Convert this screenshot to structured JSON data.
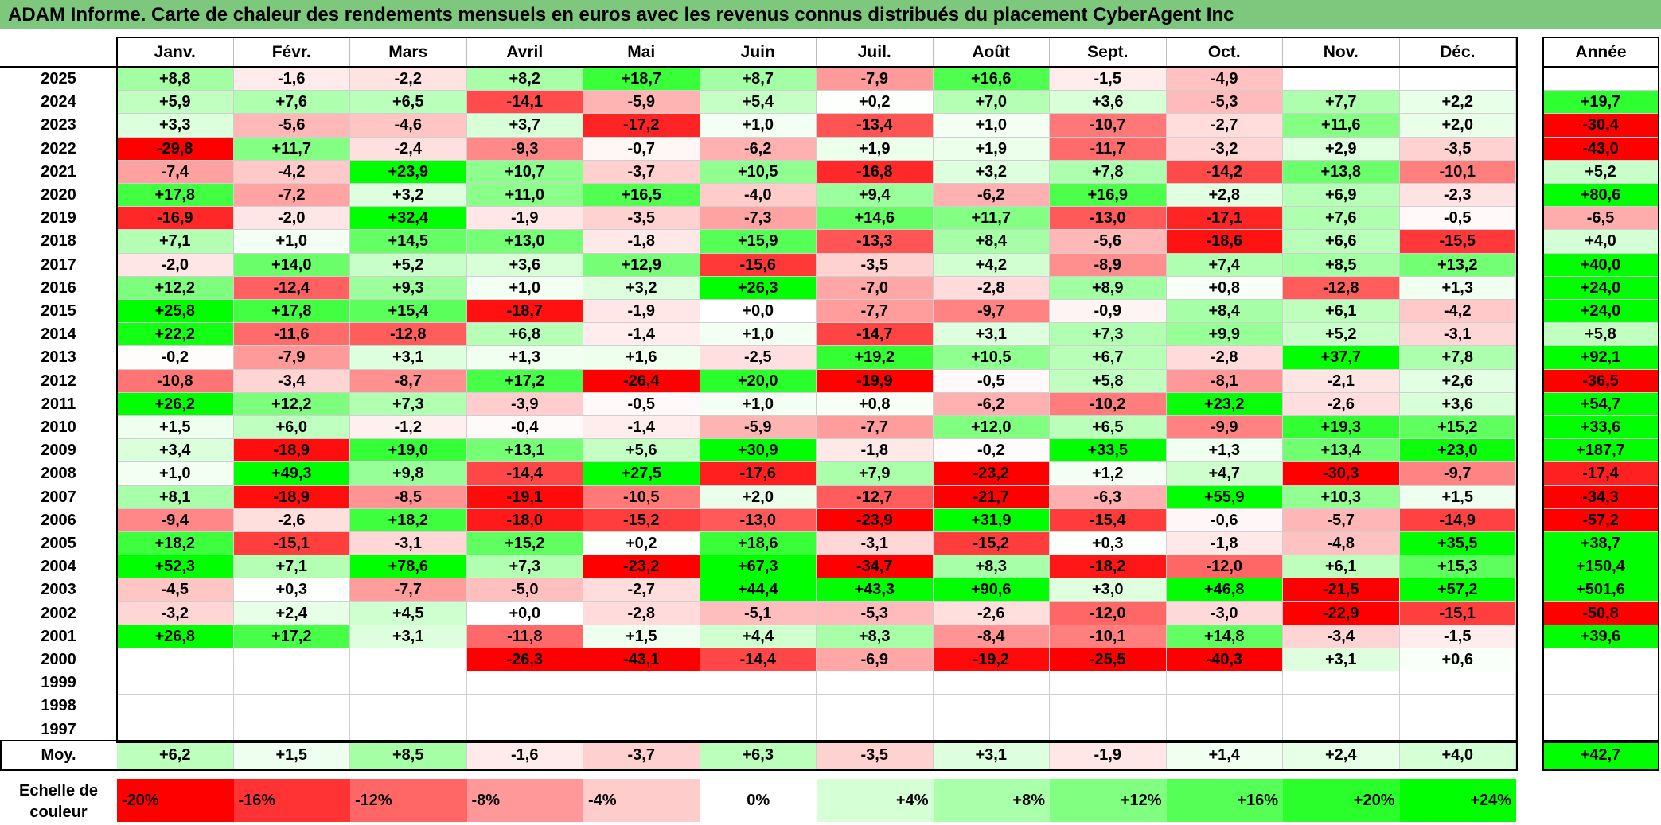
{
  "title": "ADAM Informe. Carte de chaleur des rendements mensuels en euros avec les revenus connus distribués du placement CyberAgent Inc",
  "chart_data": {
    "type": "heatmap",
    "title": "ADAM Informe. Carte de chaleur des rendements mensuels en euros avec les revenus connus distribués du placement CyberAgent Inc",
    "columns": [
      "Janv.",
      "Févr.",
      "Mars",
      "Avril",
      "Mai",
      "Juin",
      "Juil.",
      "Août",
      "Sept.",
      "Oct.",
      "Nov.",
      "Déc."
    ],
    "annual_header": "Année",
    "rows": [
      {
        "year": "2025",
        "values": [
          "+8,8",
          "-1,6",
          "-2,2",
          "+8,2",
          "+18,7",
          "+8,7",
          "-7,9",
          "+16,6",
          "-1,5",
          "-4,9",
          "",
          ""
        ],
        "annual": ""
      },
      {
        "year": "2024",
        "values": [
          "+5,9",
          "+7,6",
          "+6,5",
          "-14,1",
          "-5,9",
          "+5,4",
          "+0,2",
          "+7,0",
          "+3,6",
          "-5,3",
          "+7,7",
          "+2,2"
        ],
        "annual": "+19,7"
      },
      {
        "year": "2023",
        "values": [
          "+3,3",
          "-5,6",
          "-4,6",
          "+3,7",
          "-17,2",
          "+1,0",
          "-13,4",
          "+1,0",
          "-10,7",
          "-2,7",
          "+11,6",
          "+2,0"
        ],
        "annual": "-30,4"
      },
      {
        "year": "2022",
        "values": [
          "-29,8",
          "+11,7",
          "-2,4",
          "-9,3",
          "-0,7",
          "-6,2",
          "+1,9",
          "+1,9",
          "-11,7",
          "-3,2",
          "+2,9",
          "-3,5"
        ],
        "annual": "-43,0"
      },
      {
        "year": "2021",
        "values": [
          "-7,4",
          "-4,2",
          "+23,9",
          "+10,7",
          "-3,7",
          "+10,5",
          "-16,8",
          "+3,2",
          "+7,8",
          "-14,2",
          "+13,8",
          "-10,1"
        ],
        "annual": "+5,2"
      },
      {
        "year": "2020",
        "values": [
          "+17,8",
          "-7,2",
          "+3,2",
          "+11,0",
          "+16,5",
          "-4,0",
          "+9,4",
          "-6,2",
          "+16,9",
          "+2,8",
          "+6,9",
          "-2,3"
        ],
        "annual": "+80,6"
      },
      {
        "year": "2019",
        "values": [
          "-16,9",
          "-2,0",
          "+32,4",
          "-1,9",
          "-3,5",
          "-7,3",
          "+14,6",
          "+11,7",
          "-13,0",
          "-17,1",
          "+7,6",
          "-0,5"
        ],
        "annual": "-6,5"
      },
      {
        "year": "2018",
        "values": [
          "+7,1",
          "+1,0",
          "+14,5",
          "+13,0",
          "-1,8",
          "+15,9",
          "-13,3",
          "+8,4",
          "-5,6",
          "-18,6",
          "+6,6",
          "-15,5"
        ],
        "annual": "+4,0"
      },
      {
        "year": "2017",
        "values": [
          "-2,0",
          "+14,0",
          "+5,2",
          "+3,6",
          "+12,9",
          "-15,6",
          "-3,5",
          "+4,2",
          "-8,9",
          "+7,4",
          "+8,5",
          "+13,2"
        ],
        "annual": "+40,0"
      },
      {
        "year": "2016",
        "values": [
          "+12,2",
          "-12,4",
          "+9,3",
          "+1,0",
          "+3,2",
          "+26,3",
          "-7,0",
          "-2,8",
          "+8,9",
          "+0,8",
          "-12,8",
          "+1,3"
        ],
        "annual": "+24,0"
      },
      {
        "year": "2015",
        "values": [
          "+25,8",
          "+17,8",
          "+15,4",
          "-18,7",
          "-1,9",
          "+0,0",
          "-7,7",
          "-9,7",
          "-0,9",
          "+8,4",
          "+6,1",
          "-4,2"
        ],
        "annual": "+24,0"
      },
      {
        "year": "2014",
        "values": [
          "+22,2",
          "-11,6",
          "-12,8",
          "+6,8",
          "-1,4",
          "+1,0",
          "-14,7",
          "+3,1",
          "+7,3",
          "+9,9",
          "+5,2",
          "-3,1"
        ],
        "annual": "+5,8"
      },
      {
        "year": "2013",
        "values": [
          "-0,2",
          "-7,9",
          "+3,1",
          "+1,3",
          "+1,6",
          "-2,5",
          "+19,2",
          "+10,5",
          "+6,7",
          "-2,8",
          "+37,7",
          "+7,8"
        ],
        "annual": "+92,1"
      },
      {
        "year": "2012",
        "values": [
          "-10,8",
          "-3,4",
          "-8,7",
          "+17,2",
          "-26,4",
          "+20,0",
          "-19,9",
          "-0,5",
          "+5,8",
          "-8,1",
          "-2,1",
          "+2,6"
        ],
        "annual": "-36,5"
      },
      {
        "year": "2011",
        "values": [
          "+26,2",
          "+12,2",
          "+7,3",
          "-3,9",
          "-0,5",
          "+1,0",
          "+0,8",
          "-6,2",
          "-10,2",
          "+23,2",
          "-2,6",
          "+3,6"
        ],
        "annual": "+54,7"
      },
      {
        "year": "2010",
        "values": [
          "+1,5",
          "+6,0",
          "-1,2",
          "-0,4",
          "-1,4",
          "-5,9",
          "-7,7",
          "+12,0",
          "+6,5",
          "-9,9",
          "+19,3",
          "+15,2"
        ],
        "annual": "+33,6"
      },
      {
        "year": "2009",
        "values": [
          "+3,4",
          "-18,9",
          "+19,0",
          "+13,1",
          "+5,6",
          "+30,9",
          "-1,8",
          "-0,2",
          "+33,5",
          "+1,3",
          "+13,4",
          "+23,0"
        ],
        "annual": "+187,7"
      },
      {
        "year": "2008",
        "values": [
          "+1,0",
          "+49,3",
          "+9,8",
          "-14,4",
          "+27,5",
          "-17,6",
          "+7,9",
          "-23,2",
          "+1,2",
          "+4,7",
          "-30,3",
          "-9,7"
        ],
        "annual": "-17,4"
      },
      {
        "year": "2007",
        "values": [
          "+8,1",
          "-18,9",
          "-8,5",
          "-19,1",
          "-10,5",
          "+2,0",
          "-12,7",
          "-21,7",
          "-6,3",
          "+55,9",
          "+10,3",
          "+1,5"
        ],
        "annual": "-34,3"
      },
      {
        "year": "2006",
        "values": [
          "-9,4",
          "-2,6",
          "+18,2",
          "-18,0",
          "-15,2",
          "-13,0",
          "-23,9",
          "+31,9",
          "-15,4",
          "-0,6",
          "-5,7",
          "-14,9"
        ],
        "annual": "-57,2"
      },
      {
        "year": "2005",
        "values": [
          "+18,2",
          "-15,1",
          "-3,1",
          "+15,2",
          "+0,2",
          "+18,6",
          "-3,1",
          "-15,2",
          "+0,3",
          "-1,8",
          "-4,8",
          "+35,5"
        ],
        "annual": "+38,7"
      },
      {
        "year": "2004",
        "values": [
          "+52,3",
          "+7,1",
          "+78,6",
          "+7,3",
          "-23,2",
          "+67,3",
          "-34,7",
          "+8,3",
          "-18,2",
          "-12,0",
          "+6,1",
          "+15,3"
        ],
        "annual": "+150,4"
      },
      {
        "year": "2003",
        "values": [
          "-4,5",
          "+0,3",
          "-7,7",
          "-5,0",
          "-2,7",
          "+44,4",
          "+43,3",
          "+90,6",
          "+3,0",
          "+46,8",
          "-21,5",
          "+57,2"
        ],
        "annual": "+501,6"
      },
      {
        "year": "2002",
        "values": [
          "-3,2",
          "+2,4",
          "+4,5",
          "+0,0",
          "-2,8",
          "-5,1",
          "-5,3",
          "-2,6",
          "-12,0",
          "-3,0",
          "-22,9",
          "-15,1"
        ],
        "annual": "-50,8"
      },
      {
        "year": "2001",
        "values": [
          "+26,8",
          "+17,2",
          "+3,1",
          "-11,8",
          "+1,5",
          "+4,4",
          "+8,3",
          "-8,4",
          "-10,1",
          "+14,8",
          "-3,4",
          "-1,5"
        ],
        "annual": "+39,6"
      },
      {
        "year": "2000",
        "values": [
          "",
          "",
          "",
          "-26,3",
          "-43,1",
          "-14,4",
          "-6,9",
          "-19,2",
          "-25,5",
          "-40,3",
          "+3,1",
          "+0,6"
        ],
        "annual": ""
      },
      {
        "year": "1999",
        "values": [
          "",
          "",
          "",
          "",
          "",
          "",
          "",
          "",
          "",
          "",
          "",
          ""
        ],
        "annual": ""
      },
      {
        "year": "1998",
        "values": [
          "",
          "",
          "",
          "",
          "",
          "",
          "",
          "",
          "",
          "",
          "",
          ""
        ],
        "annual": ""
      },
      {
        "year": "1997",
        "values": [
          "",
          "",
          "",
          "",
          "",
          "",
          "",
          "",
          "",
          "",
          "",
          ""
        ],
        "annual": ""
      }
    ],
    "average": {
      "label": "Moy.",
      "values": [
        "+6,2",
        "+1,5",
        "+8,5",
        "-1,6",
        "-3,7",
        "+6,3",
        "-3,5",
        "+3,1",
        "-1,9",
        "+1,4",
        "+2,4",
        "+4,0"
      ],
      "annual": "+42,7"
    },
    "scale": {
      "label": "Echelle de couleur",
      "steps": [
        {
          "label": "-20%",
          "value": -20
        },
        {
          "label": "-16%",
          "value": -16
        },
        {
          "label": "-12%",
          "value": -12
        },
        {
          "label": "-8%",
          "value": -8
        },
        {
          "label": "-4%",
          "value": -4
        },
        {
          "label": "0%",
          "value": 0
        },
        {
          "label": "+4%",
          "value": 4
        },
        {
          "label": "+8%",
          "value": 8
        },
        {
          "label": "+12%",
          "value": 12
        },
        {
          "label": "+16%",
          "value": 16
        },
        {
          "label": "+20%",
          "value": 20
        },
        {
          "label": "+24%",
          "value": 24
        }
      ]
    },
    "colors": {
      "negative": "#ff0000",
      "neutral": "#ffffff",
      "positive": "#00ff00",
      "title_bar": "#7dc87d"
    }
  }
}
